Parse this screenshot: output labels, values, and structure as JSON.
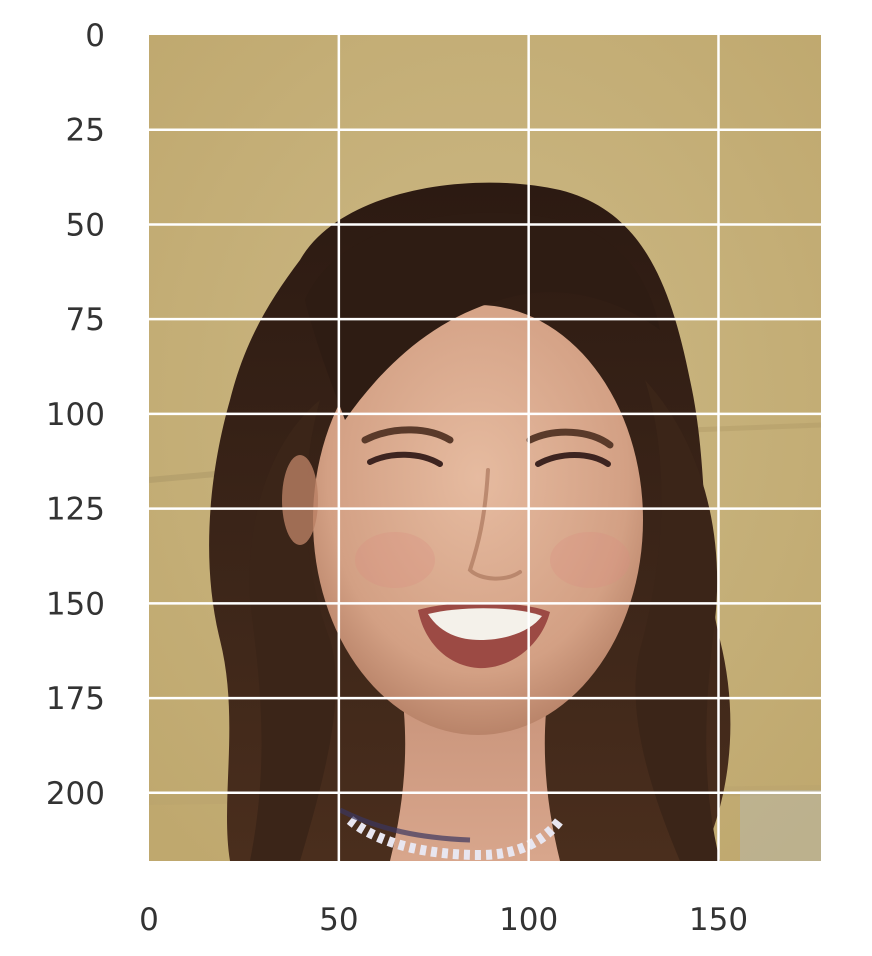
{
  "figure": {
    "image": {
      "subject": "smiling-woman-portrait",
      "width": 177,
      "height": 218
    },
    "axes": {
      "x_ticks": [
        0,
        50,
        100,
        150
      ],
      "x_tick_labels": [
        "0",
        "50",
        "100",
        "150"
      ],
      "y_ticks": [
        0,
        25,
        50,
        75,
        100,
        125,
        150,
        175,
        200
      ],
      "y_tick_labels": [
        "0",
        "25",
        "50",
        "75",
        "100",
        "125",
        "150",
        "175",
        "200"
      ],
      "grid": true,
      "origin": "top-left"
    },
    "colors": {
      "background": "#c9b47c",
      "hair": "#3a2418",
      "skin": "#d9a88c",
      "grid": "#ffffff",
      "tick_text": "#333333"
    }
  }
}
